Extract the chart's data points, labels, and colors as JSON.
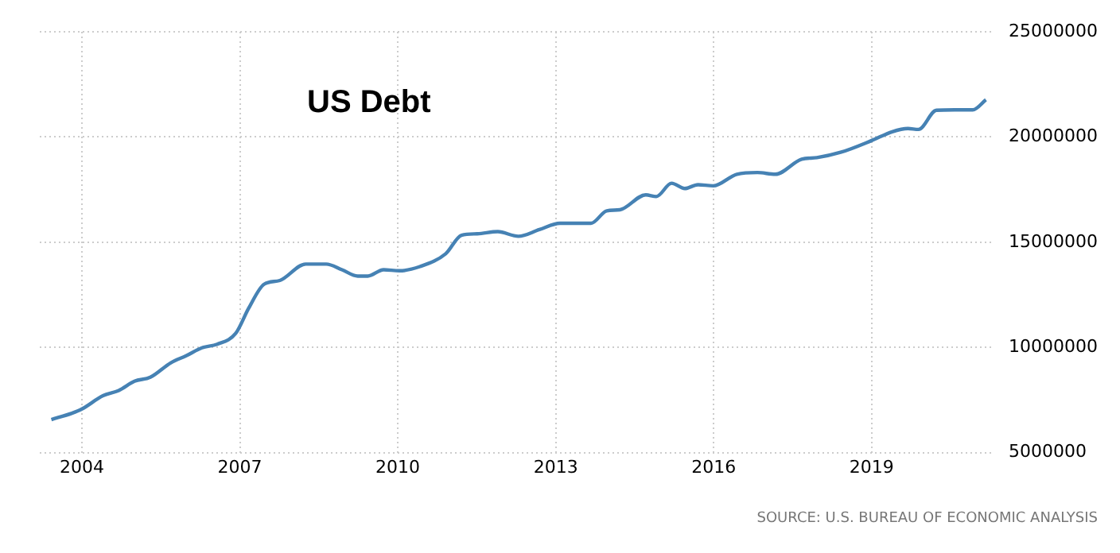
{
  "chart_data": {
    "type": "line",
    "title": "US Debt",
    "annotations": [
      "SOURCE: U.S. BUREAU OF ECONOMIC ANALYSIS"
    ],
    "x": [
      2003.42,
      2003.81,
      2004.0,
      2004.4,
      2004.7,
      2005.0,
      2005.3,
      2005.69,
      2005.98,
      2006.28,
      2006.57,
      2006.92,
      2007.17,
      2007.46,
      2007.76,
      2008.25,
      2008.64,
      2008.94,
      2009.24,
      2009.43,
      2009.73,
      2010.03,
      2010.42,
      2010.91,
      2011.21,
      2011.51,
      2011.9,
      2012.29,
      2012.69,
      2013.08,
      2013.67,
      2013.97,
      2014.22,
      2014.71,
      2014.91,
      2015.2,
      2015.45,
      2015.7,
      2015.99,
      2016.44,
      2016.83,
      2017.17,
      2017.67,
      2017.96,
      2018.41,
      2019.0,
      2019.39,
      2019.69,
      2019.89,
      2020.23,
      2020.58,
      2020.92,
      2021.17
    ],
    "series": [
      {
        "color": "#4682b4",
        "values": [
          6570000,
          6870000,
          7070000,
          7700000,
          7950000,
          8390000,
          8580000,
          9270000,
          9600000,
          9980000,
          10150000,
          10660000,
          11870000,
          13000000,
          13180000,
          13960000,
          13960000,
          13690000,
          13390000,
          13390000,
          13690000,
          13640000,
          13840000,
          14450000,
          15330000,
          15400000,
          15500000,
          15280000,
          15600000,
          15900000,
          15900000,
          16490000,
          16540000,
          17250000,
          17170000,
          17800000,
          17550000,
          17730000,
          17680000,
          18230000,
          18310000,
          18230000,
          18940000,
          19020000,
          19270000,
          19830000,
          20250000,
          20400000,
          20360000,
          21270000,
          21290000,
          21290000,
          21770000
        ]
      }
    ],
    "xlim": [
      2003.2,
      2021.3
    ],
    "xticks": [
      2004,
      2007,
      2010,
      2013,
      2016,
      2019
    ],
    "ylim": [
      5000000,
      25000000
    ],
    "yticks": [
      5000000,
      10000000,
      15000000,
      20000000,
      25000000
    ],
    "grid": true,
    "legend": false,
    "marker": "none",
    "line_style": "solid"
  }
}
